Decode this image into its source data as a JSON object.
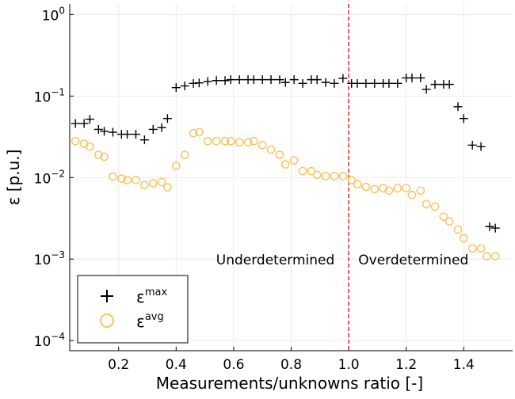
{
  "chart_data": {
    "type": "scatter",
    "title": "",
    "xlabel": "Measurements/unknowns ratio [-]",
    "ylabel": "ε [p.u.]",
    "xlim": [
      0.03,
      1.57
    ],
    "ylim": [
      7.5e-05,
      1.35
    ],
    "y_scale": "log",
    "grid": true,
    "legend_position": "bottom-left",
    "x_ticks": [
      {
        "value": 0.2,
        "label": "0.2"
      },
      {
        "value": 0.4,
        "label": "0.4"
      },
      {
        "value": 0.6,
        "label": "0.6"
      },
      {
        "value": 0.8,
        "label": "0.8"
      },
      {
        "value": 1.0,
        "label": "1.0"
      },
      {
        "value": 1.2,
        "label": "1.2"
      },
      {
        "value": 1.4,
        "label": "1.4"
      }
    ],
    "y_ticks": [
      {
        "value": 1,
        "base": "10",
        "exp": "0"
      },
      {
        "value": 0.1,
        "base": "10",
        "exp": "−1"
      },
      {
        "value": 0.01,
        "base": "10",
        "exp": "−2"
      },
      {
        "value": 0.001,
        "base": "10",
        "exp": "−3"
      },
      {
        "value": 0.0001,
        "base": "10",
        "exp": "−4"
      }
    ],
    "vline": {
      "x": 1.0,
      "color": "#e8161b",
      "style": "dashed"
    },
    "annotations": [
      {
        "text": "Underdetermined",
        "x": 0.745,
        "y": 0.001
      },
      {
        "text": "Overdetermined",
        "x": 1.225,
        "y": 0.001
      }
    ],
    "series": [
      {
        "name_base": "ε",
        "name_sup": "max",
        "marker": "plus",
        "color": "#000000",
        "points": [
          [
            0.05,
            0.046
          ],
          [
            0.08,
            0.046
          ],
          [
            0.1,
            0.052
          ],
          [
            0.13,
            0.039
          ],
          [
            0.15,
            0.037
          ],
          [
            0.18,
            0.036
          ],
          [
            0.21,
            0.034
          ],
          [
            0.23,
            0.034
          ],
          [
            0.26,
            0.034
          ],
          [
            0.29,
            0.029
          ],
          [
            0.32,
            0.039
          ],
          [
            0.35,
            0.041
          ],
          [
            0.37,
            0.053
          ],
          [
            0.4,
            0.127
          ],
          [
            0.43,
            0.133
          ],
          [
            0.46,
            0.143
          ],
          [
            0.48,
            0.145
          ],
          [
            0.51,
            0.151
          ],
          [
            0.54,
            0.155
          ],
          [
            0.57,
            0.155
          ],
          [
            0.59,
            0.159
          ],
          [
            0.62,
            0.159
          ],
          [
            0.65,
            0.159
          ],
          [
            0.67,
            0.159
          ],
          [
            0.7,
            0.159
          ],
          [
            0.73,
            0.159
          ],
          [
            0.76,
            0.159
          ],
          [
            0.78,
            0.147
          ],
          [
            0.81,
            0.159
          ],
          [
            0.84,
            0.143
          ],
          [
            0.87,
            0.159
          ],
          [
            0.89,
            0.159
          ],
          [
            0.92,
            0.147
          ],
          [
            0.95,
            0.143
          ],
          [
            0.98,
            0.165
          ],
          [
            1.01,
            0.143
          ],
          [
            1.03,
            0.143
          ],
          [
            1.06,
            0.143
          ],
          [
            1.09,
            0.143
          ],
          [
            1.12,
            0.143
          ],
          [
            1.14,
            0.143
          ],
          [
            1.17,
            0.143
          ],
          [
            1.2,
            0.167
          ],
          [
            1.22,
            0.167
          ],
          [
            1.25,
            0.167
          ],
          [
            1.27,
            0.121
          ],
          [
            1.3,
            0.139
          ],
          [
            1.33,
            0.139
          ],
          [
            1.35,
            0.139
          ],
          [
            1.38,
            0.074
          ],
          [
            1.4,
            0.053
          ],
          [
            1.43,
            0.025
          ],
          [
            1.46,
            0.024
          ],
          [
            1.49,
            0.0025
          ],
          [
            1.51,
            0.0024
          ]
        ]
      },
      {
        "name_base": "ε",
        "name_sup": "avg",
        "marker": "circle",
        "color": "#f7c561",
        "points": [
          [
            0.05,
            0.028
          ],
          [
            0.08,
            0.026
          ],
          [
            0.1,
            0.024
          ],
          [
            0.13,
            0.019
          ],
          [
            0.15,
            0.018
          ],
          [
            0.18,
            0.0103
          ],
          [
            0.21,
            0.0097
          ],
          [
            0.23,
            0.0093
          ],
          [
            0.26,
            0.0093
          ],
          [
            0.29,
            0.0081
          ],
          [
            0.32,
            0.0085
          ],
          [
            0.35,
            0.0088
          ],
          [
            0.37,
            0.0076
          ],
          [
            0.4,
            0.0139
          ],
          [
            0.43,
            0.019
          ],
          [
            0.46,
            0.035
          ],
          [
            0.48,
            0.036
          ],
          [
            0.51,
            0.028
          ],
          [
            0.54,
            0.028
          ],
          [
            0.57,
            0.028
          ],
          [
            0.59,
            0.028
          ],
          [
            0.62,
            0.027
          ],
          [
            0.65,
            0.027
          ],
          [
            0.67,
            0.028
          ],
          [
            0.7,
            0.025
          ],
          [
            0.73,
            0.022
          ],
          [
            0.76,
            0.019
          ],
          [
            0.78,
            0.0145
          ],
          [
            0.81,
            0.0162
          ],
          [
            0.84,
            0.012
          ],
          [
            0.87,
            0.012
          ],
          [
            0.89,
            0.0108
          ],
          [
            0.92,
            0.0104
          ],
          [
            0.95,
            0.0104
          ],
          [
            0.98,
            0.0104
          ],
          [
            1.01,
            0.0093
          ],
          [
            1.03,
            0.0083
          ],
          [
            1.06,
            0.0077
          ],
          [
            1.09,
            0.0072
          ],
          [
            1.12,
            0.0074
          ],
          [
            1.14,
            0.0069
          ],
          [
            1.17,
            0.0074
          ],
          [
            1.2,
            0.0074
          ],
          [
            1.22,
            0.0061
          ],
          [
            1.25,
            0.0069
          ],
          [
            1.27,
            0.0047
          ],
          [
            1.3,
            0.0044
          ],
          [
            1.33,
            0.0033
          ],
          [
            1.35,
            0.0029
          ],
          [
            1.38,
            0.0023
          ],
          [
            1.4,
            0.0018
          ],
          [
            1.43,
            0.00135
          ],
          [
            1.46,
            0.00135
          ],
          [
            1.48,
            0.00108
          ],
          [
            1.51,
            0.00108
          ]
        ]
      }
    ]
  }
}
